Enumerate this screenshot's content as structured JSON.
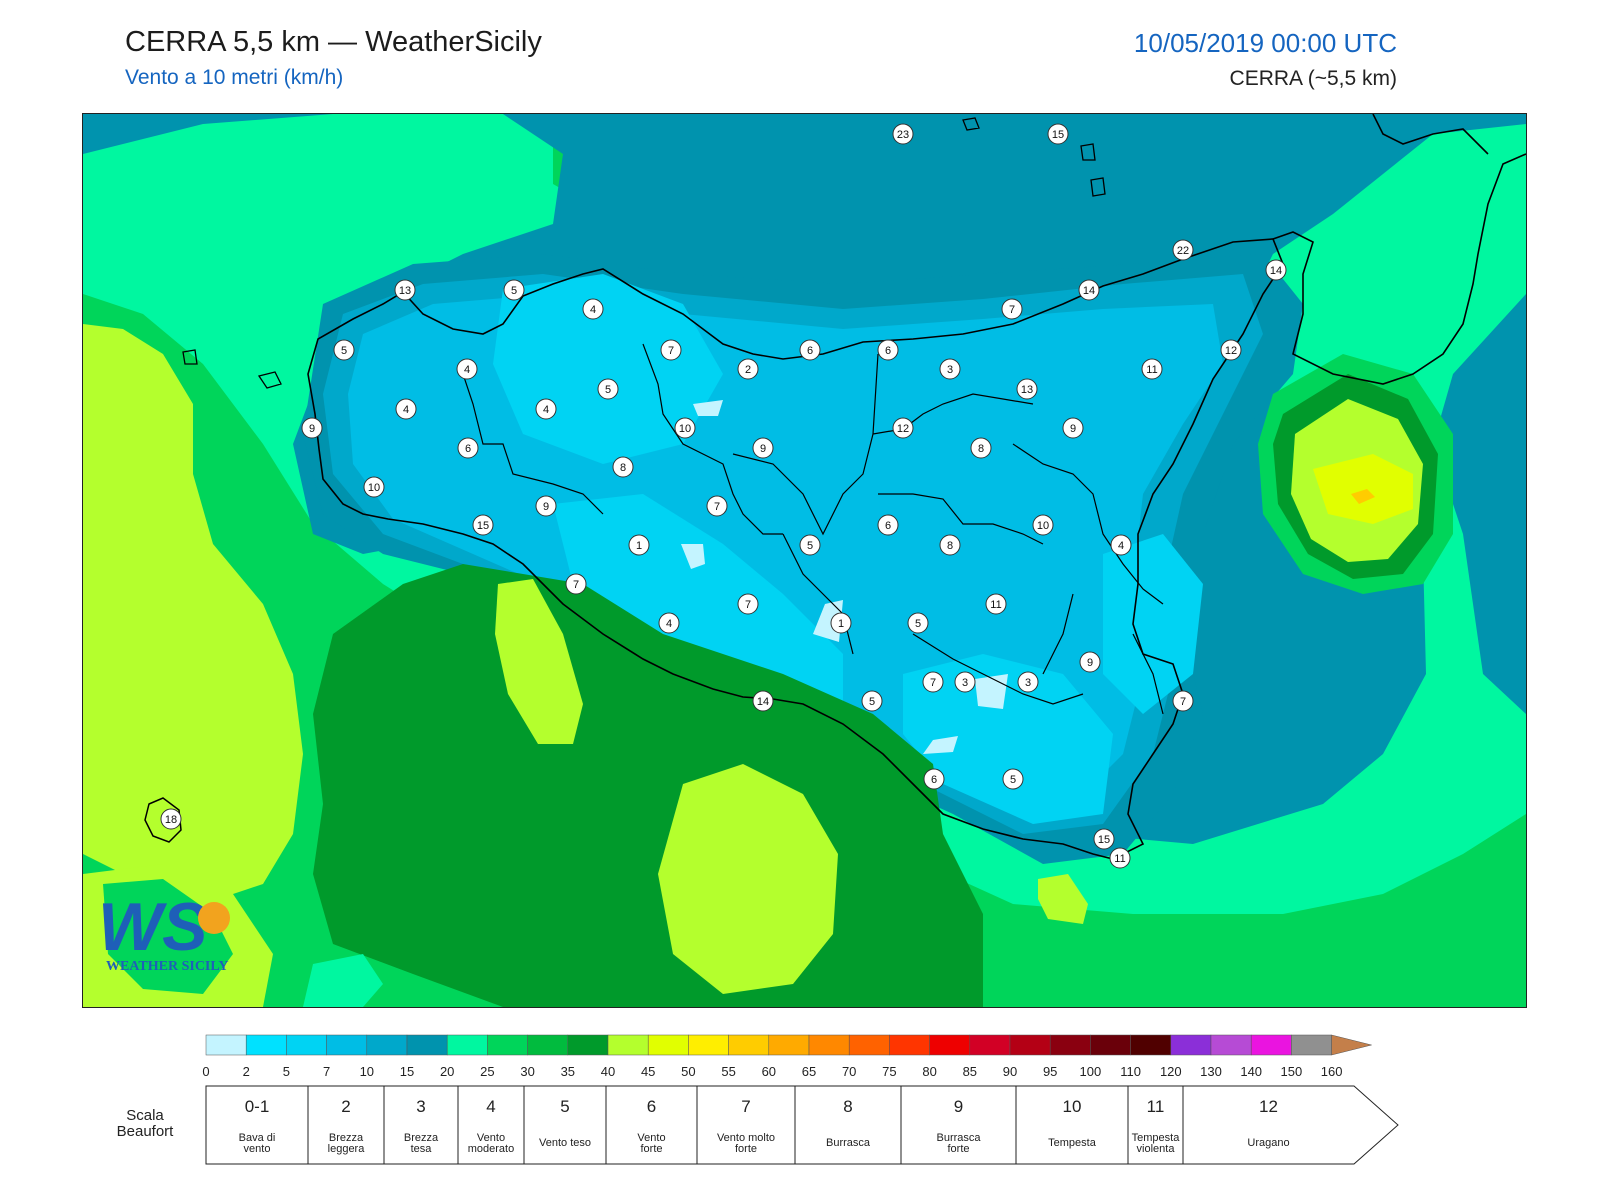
{
  "header": {
    "title": "CERRA 5,5 km — WeatherSicily",
    "subtitle": "Vento a 10 metri (km/h)",
    "datetime": "10/05/2019 00:00 UTC",
    "model": "CERRA (~5,5 km)"
  },
  "logo": {
    "text": "WS",
    "caption": "WEATHER SICILY"
  },
  "colorbar": {
    "ticks": [
      "0",
      "2",
      "5",
      "7",
      "10",
      "15",
      "20",
      "25",
      "30",
      "35",
      "40",
      "45",
      "50",
      "55",
      "60",
      "65",
      "70",
      "75",
      "80",
      "85",
      "90",
      "95",
      "100",
      "110",
      "120",
      "130",
      "140",
      "150",
      "160"
    ],
    "colors": [
      "#c4f4ff",
      "#00e1ff",
      "#00d3f3",
      "#00bde5",
      "#00a8cb",
      "#0093ae",
      "#00f7a0",
      "#00d55a",
      "#01bb3e",
      "#009a2b",
      "#b4ff2d",
      "#e1ff00",
      "#ffee00",
      "#ffcc00",
      "#ffaa00",
      "#ff8800",
      "#ff6200",
      "#ff3500",
      "#ee0000",
      "#d20025",
      "#b40015",
      "#8a0010",
      "#6a000a",
      "#500000",
      "#8b2fd8",
      "#b64bd5",
      "#ea14e0",
      "#909090",
      "#606060",
      "#000000",
      "#8b4a2c",
      "#c47f4a"
    ]
  },
  "beaufort": {
    "title_line1": "Scala",
    "title_line2": "Beaufort",
    "levels": [
      {
        "num": "0-1",
        "line1": "Bava di",
        "line2": "vento"
      },
      {
        "num": "2",
        "line1": "Brezza",
        "line2": "leggera"
      },
      {
        "num": "3",
        "line1": "Brezza",
        "line2": "tesa"
      },
      {
        "num": "4",
        "line1": "Vento",
        "line2": "moderato"
      },
      {
        "num": "5",
        "line1": "Vento teso",
        "line2": ""
      },
      {
        "num": "6",
        "line1": "Vento",
        "line2": "forte"
      },
      {
        "num": "7",
        "line1": "Vento molto",
        "line2": "forte"
      },
      {
        "num": "8",
        "line1": "Burrasca",
        "line2": ""
      },
      {
        "num": "9",
        "line1": "Burrasca",
        "line2": "forte"
      },
      {
        "num": "10",
        "line1": "Tempesta",
        "line2": ""
      },
      {
        "num": "11",
        "line1": "Tempesta",
        "line2": "violenta"
      },
      {
        "num": "12",
        "line1": "Uragano",
        "line2": ""
      }
    ]
  },
  "wind_labels": [
    "23",
    "15",
    "22",
    "14",
    "13",
    "5",
    "4",
    "14",
    "7",
    "12",
    "5",
    "7",
    "2",
    "6",
    "6",
    "3",
    "11",
    "13",
    "4",
    "5",
    "9",
    "4",
    "4",
    "10",
    "9",
    "12",
    "8",
    "9",
    "6",
    "8",
    "10",
    "9",
    "7",
    "10",
    "15",
    "1",
    "5",
    "6",
    "8",
    "4",
    "7",
    "7",
    "11",
    "1",
    "5",
    "4",
    "9",
    "14",
    "5",
    "3",
    "3",
    "7",
    "6",
    "5",
    "7",
    "15",
    "11",
    "18"
  ]
}
